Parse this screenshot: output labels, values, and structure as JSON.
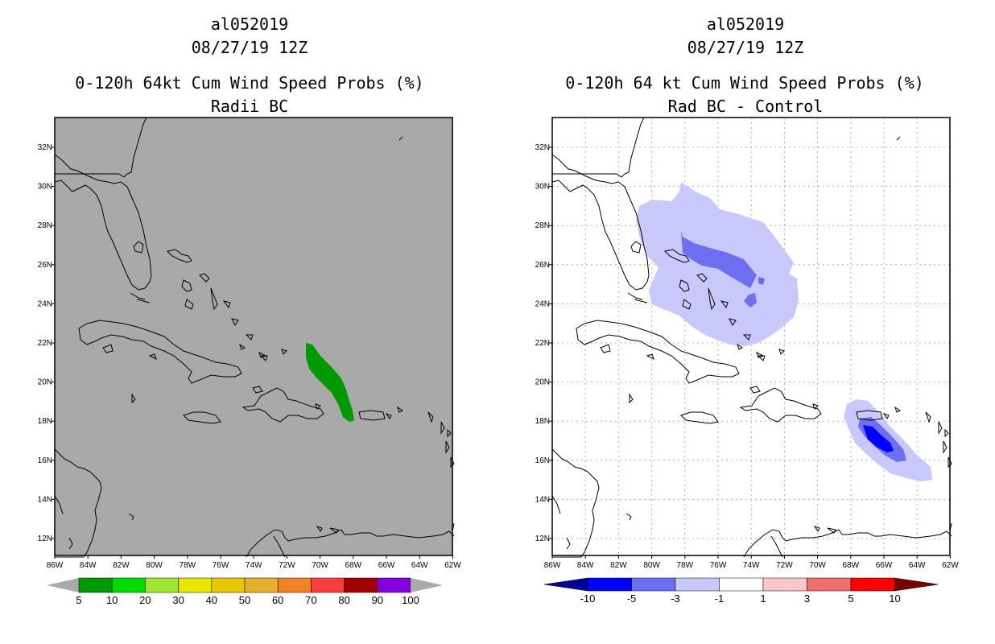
{
  "panels": [
    {
      "storm_id": "al052019",
      "datetime": "08/27/19 12Z",
      "title": "0-120h 64kt Cum Wind Speed Probs (%)",
      "subtitle": "Radii BC",
      "background_color": "#a9a9a9",
      "colorbar": {
        "labels": [
          "5",
          "10",
          "20",
          "30",
          "40",
          "50",
          "60",
          "70",
          "80",
          "90",
          "100"
        ],
        "colors": [
          "#009a00",
          "#00dc00",
          "#a0e632",
          "#e6e600",
          "#e6c800",
          "#e6af2d",
          "#f08228",
          "#fa3c3c",
          "#a00000",
          "#8200dc"
        ]
      }
    },
    {
      "storm_id": "al052019",
      "datetime": "08/27/19 12Z",
      "title": "0-120h 64 kt Cum Wind Speed Probs (%)",
      "subtitle": "Rad BC - Control",
      "background_color": "#ffffff",
      "colorbar": {
        "labels": [
          "-10",
          "-5",
          "-3",
          "-1",
          "1",
          "3",
          "5",
          "10"
        ],
        "colors": [
          "#0000ff",
          "#6e6ef0",
          "#c8c8fa",
          "#ffffff",
          "#fac8c8",
          "#f07070",
          "#ff0000"
        ],
        "end_colors": [
          "#000096",
          "#780000"
        ]
      }
    }
  ],
  "map": {
    "lat_labels": [
      "32N",
      "30N",
      "28N",
      "26N",
      "24N",
      "22N",
      "20N",
      "18N",
      "16N",
      "14N",
      "12N"
    ],
    "lon_labels": [
      "86W",
      "84W",
      "82W",
      "80W",
      "78W",
      "76W",
      "74W",
      "72W",
      "70W",
      "68W",
      "66W",
      "64W",
      "62W"
    ]
  }
}
